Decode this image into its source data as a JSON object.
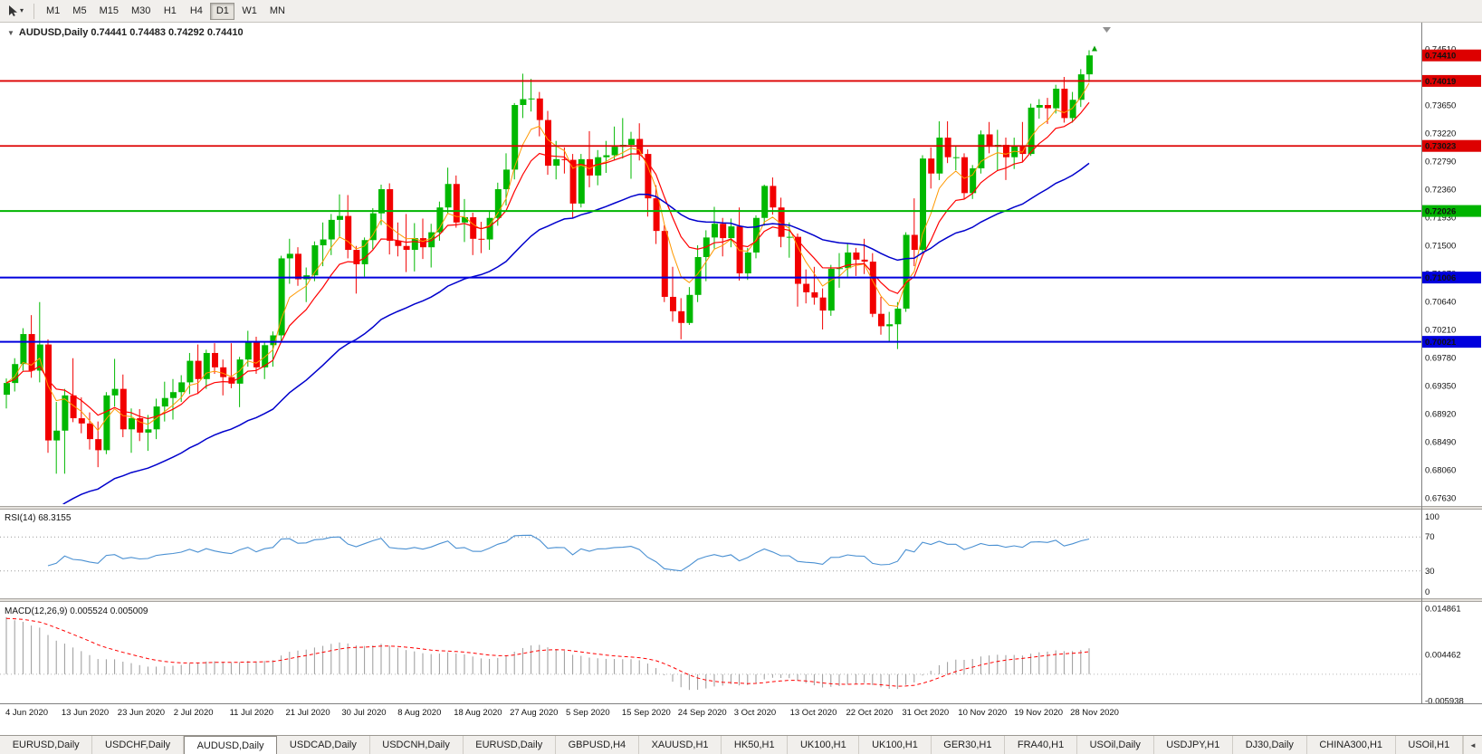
{
  "toolbar": {
    "pointer_tool": {
      "caret": "▾"
    },
    "timeframes": [
      {
        "label": "M1",
        "active": false
      },
      {
        "label": "M5",
        "active": false
      },
      {
        "label": "M15",
        "active": false
      },
      {
        "label": "M30",
        "active": false
      },
      {
        "label": "H1",
        "active": false
      },
      {
        "label": "H4",
        "active": false
      },
      {
        "label": "D1",
        "active": true
      },
      {
        "label": "W1",
        "active": false
      },
      {
        "label": "MN",
        "active": false
      }
    ]
  },
  "chart_data": {
    "type": "candlestick",
    "symbol": "AUDUSD",
    "timeframe": "Daily",
    "readout_line": "AUDUSD,Daily  0.74441 0.74483 0.74292 0.74410",
    "ohlc_readout": {
      "open": "0.74441",
      "high": "0.74483",
      "low": "0.74292",
      "close": "0.74410"
    },
    "up_color": "#00b800",
    "down_color": "#f20000",
    "price_axis": {
      "scale_max": 0.74857,
      "scale_min": 0.67533,
      "labels": [
        "0.74510",
        "0.73650",
        "0.73220",
        "0.72790",
        "0.72360",
        "0.71930",
        "0.71500",
        "0.71070",
        "0.70640",
        "0.70210",
        "0.69780",
        "0.69350",
        "0.68920",
        "0.68490",
        "0.68060",
        "0.67630"
      ]
    },
    "levels": [
      {
        "price": 0.7441,
        "label": "0.74410",
        "color": "#dd0000",
        "line": false,
        "width": 0
      },
      {
        "price": 0.74019,
        "label": "0.74019",
        "color": "#dd0000",
        "line": true,
        "width": 1.8
      },
      {
        "price": 0.73023,
        "label": "0.73023",
        "color": "#dd0000",
        "line": true,
        "width": 1.8
      },
      {
        "price": 0.72026,
        "label": "0.72026",
        "color": "#00b400",
        "line": true,
        "width": 2
      },
      {
        "price": 0.71006,
        "label": "0.71006",
        "color": "#0000dd",
        "line": true,
        "width": 2
      },
      {
        "price": 0.70021,
        "label": "0.70021",
        "color": "#0000dd",
        "line": true,
        "width": 2
      }
    ],
    "moving_averages": [
      {
        "name": "ma-fast-orange",
        "period": 5,
        "color": "#ff9900",
        "width": 1
      },
      {
        "name": "ma-mid-red",
        "period": 10,
        "color": "#ff0000",
        "width": 1.2
      },
      {
        "name": "ma-slow-blue",
        "period": 35,
        "color": "#0000cc",
        "width": 1.5,
        "seed": 0.665
      }
    ],
    "x_labels": [
      "4 Jun 2020",
      "13 Jun 2020",
      "23 Jun 2020",
      "2 Jul 2020",
      "11 Jul 2020",
      "21 Jul 2020",
      "30 Jul 2020",
      "8 Aug 2020",
      "18 Aug 2020",
      "27 Aug 2020",
      "5 Sep 2020",
      "15 Sep 2020",
      "24 Sep 2020",
      "3 Oct 2020",
      "13 Oct 2020",
      "22 Oct 2020",
      "31 Oct 2020",
      "10 Nov 2020",
      "19 Nov 2020",
      "28 Nov 2020"
    ],
    "rsi": {
      "readout": "RSI(14) 68.3155",
      "period": 14,
      "value": "68.3155",
      "color": "#4a90d2",
      "level_lines": [
        70,
        30
      ],
      "axis_labels": [
        "100",
        "70",
        "30",
        "0"
      ]
    },
    "macd": {
      "readout": "MACD(12,26,9) 0.005524 0.005009",
      "fast": 12,
      "slow": 26,
      "signal": 9,
      "macd_value": "0.005524",
      "signal_value": "0.005009",
      "bar_color": "#9a9a9a",
      "signal_color": "#ff0000",
      "scale": {
        "max": 0.014861,
        "min": -0.005938
      },
      "axis_labels": [
        "0.014861",
        "0.004462",
        "-0.005938"
      ],
      "seed_slow": 0.68,
      "seed_signal": 0.0125
    },
    "last_candle_marker": {
      "shape": "arrow-up",
      "color": "#00a000"
    },
    "candles": [
      [
        0.6921,
        0.6946,
        0.69,
        0.6939
      ],
      [
        0.6939,
        0.6977,
        0.6926,
        0.6968
      ],
      [
        0.6968,
        0.7023,
        0.6958,
        0.7014
      ],
      [
        0.7014,
        0.7043,
        0.6947,
        0.6958
      ],
      [
        0.6958,
        0.7063,
        0.694,
        0.6998
      ],
      [
        0.6998,
        0.7006,
        0.6832,
        0.6851
      ],
      [
        0.6851,
        0.691,
        0.68,
        0.6866
      ],
      [
        0.6866,
        0.693,
        0.68,
        0.692
      ],
      [
        0.692,
        0.6977,
        0.6879,
        0.6885
      ],
      [
        0.6885,
        0.6917,
        0.6862,
        0.6877
      ],
      [
        0.6877,
        0.6894,
        0.6837,
        0.6853
      ],
      [
        0.6853,
        0.688,
        0.681,
        0.6836
      ],
      [
        0.6836,
        0.6925,
        0.683,
        0.692
      ],
      [
        0.692,
        0.6976,
        0.6903,
        0.693
      ],
      [
        0.693,
        0.6952,
        0.6856,
        0.6868
      ],
      [
        0.6868,
        0.69,
        0.6832,
        0.6885
      ],
      [
        0.6885,
        0.6899,
        0.685,
        0.6863
      ],
      [
        0.6863,
        0.689,
        0.6835,
        0.6868
      ],
      [
        0.6868,
        0.6915,
        0.6853,
        0.6903
      ],
      [
        0.6903,
        0.6941,
        0.688,
        0.6916
      ],
      [
        0.6916,
        0.6945,
        0.6883,
        0.6925
      ],
      [
        0.6925,
        0.6951,
        0.691,
        0.694
      ],
      [
        0.694,
        0.6985,
        0.6922,
        0.6973
      ],
      [
        0.6973,
        0.6998,
        0.6922,
        0.6945
      ],
      [
        0.6945,
        0.699,
        0.693,
        0.6985
      ],
      [
        0.6985,
        0.7,
        0.6953,
        0.6963
      ],
      [
        0.6963,
        0.6975,
        0.692,
        0.6948
      ],
      [
        0.6948,
        0.7,
        0.6931,
        0.6938
      ],
      [
        0.6938,
        0.6979,
        0.6902,
        0.6975
      ],
      [
        0.6975,
        0.7019,
        0.6964,
        0.7003
      ],
      [
        0.7003,
        0.701,
        0.6953,
        0.6963
      ],
      [
        0.6963,
        0.7003,
        0.6945,
        0.6997
      ],
      [
        0.6997,
        0.7018,
        0.6964,
        0.7012
      ],
      [
        0.7012,
        0.7134,
        0.7001,
        0.713
      ],
      [
        0.713,
        0.716,
        0.7091,
        0.7137
      ],
      [
        0.7137,
        0.7147,
        0.7088,
        0.7098
      ],
      [
        0.7098,
        0.7116,
        0.7063,
        0.7104
      ],
      [
        0.7104,
        0.7156,
        0.7095,
        0.715
      ],
      [
        0.715,
        0.7185,
        0.7118,
        0.7159
      ],
      [
        0.7159,
        0.7198,
        0.7135,
        0.7189
      ],
      [
        0.7189,
        0.7228,
        0.7162,
        0.7195
      ],
      [
        0.7195,
        0.7227,
        0.713,
        0.7143
      ],
      [
        0.7143,
        0.7149,
        0.7076,
        0.7121
      ],
      [
        0.7121,
        0.7162,
        0.7102,
        0.7158
      ],
      [
        0.7158,
        0.7207,
        0.7144,
        0.7199
      ],
      [
        0.7199,
        0.7243,
        0.7181,
        0.7236
      ],
      [
        0.7236,
        0.7245,
        0.7136,
        0.7157
      ],
      [
        0.7157,
        0.7185,
        0.7133,
        0.7149
      ],
      [
        0.7149,
        0.7198,
        0.7109,
        0.7143
      ],
      [
        0.7143,
        0.7184,
        0.711,
        0.7161
      ],
      [
        0.7161,
        0.7191,
        0.7129,
        0.7147
      ],
      [
        0.7147,
        0.7183,
        0.7116,
        0.717
      ],
      [
        0.717,
        0.7217,
        0.7157,
        0.7208
      ],
      [
        0.7208,
        0.7269,
        0.7199,
        0.7244
      ],
      [
        0.7244,
        0.7257,
        0.7177,
        0.7185
      ],
      [
        0.7185,
        0.7221,
        0.7155,
        0.7193
      ],
      [
        0.7193,
        0.72,
        0.7135,
        0.716
      ],
      [
        0.716,
        0.7186,
        0.7138,
        0.7159
      ],
      [
        0.7159,
        0.7203,
        0.7143,
        0.7192
      ],
      [
        0.7192,
        0.7246,
        0.718,
        0.7236
      ],
      [
        0.7236,
        0.7291,
        0.7211,
        0.7266
      ],
      [
        0.7266,
        0.7368,
        0.7251,
        0.7365
      ],
      [
        0.7365,
        0.7413,
        0.7345,
        0.7374
      ],
      [
        0.7374,
        0.7405,
        0.7355,
        0.7375
      ],
      [
        0.7375,
        0.7385,
        0.7317,
        0.7342
      ],
      [
        0.7342,
        0.7356,
        0.7258,
        0.7272
      ],
      [
        0.7272,
        0.731,
        0.7251,
        0.7282
      ],
      [
        0.7282,
        0.73,
        0.726,
        0.7281
      ],
      [
        0.7281,
        0.729,
        0.7192,
        0.7214
      ],
      [
        0.7214,
        0.729,
        0.7208,
        0.7282
      ],
      [
        0.7282,
        0.7325,
        0.7239,
        0.7257
      ],
      [
        0.7257,
        0.7296,
        0.7242,
        0.7285
      ],
      [
        0.7285,
        0.731,
        0.7261,
        0.7288
      ],
      [
        0.7288,
        0.7332,
        0.728,
        0.7301
      ],
      [
        0.7301,
        0.7345,
        0.7283,
        0.7304
      ],
      [
        0.7304,
        0.7324,
        0.7252,
        0.7313
      ],
      [
        0.7313,
        0.7337,
        0.728,
        0.729
      ],
      [
        0.729,
        0.7297,
        0.7194,
        0.7222
      ],
      [
        0.7222,
        0.7242,
        0.7152,
        0.7172
      ],
      [
        0.7172,
        0.7181,
        0.7063,
        0.7071
      ],
      [
        0.7071,
        0.7117,
        0.7033,
        0.7049
      ],
      [
        0.7049,
        0.7069,
        0.7006,
        0.7031
      ],
      [
        0.7031,
        0.7086,
        0.7028,
        0.7074
      ],
      [
        0.7074,
        0.715,
        0.7063,
        0.7132
      ],
      [
        0.7132,
        0.7173,
        0.7095,
        0.7162
      ],
      [
        0.7162,
        0.7209,
        0.7145,
        0.7183
      ],
      [
        0.7183,
        0.7192,
        0.7133,
        0.7161
      ],
      [
        0.7161,
        0.7191,
        0.7147,
        0.7179
      ],
      [
        0.7179,
        0.7208,
        0.7096,
        0.7107
      ],
      [
        0.7107,
        0.7146,
        0.7097,
        0.7139
      ],
      [
        0.7139,
        0.7196,
        0.713,
        0.7192
      ],
      [
        0.7192,
        0.7243,
        0.718,
        0.7241
      ],
      [
        0.7241,
        0.7254,
        0.7197,
        0.7208
      ],
      [
        0.7208,
        0.7223,
        0.7147,
        0.7163
      ],
      [
        0.7163,
        0.7185,
        0.7131,
        0.7163
      ],
      [
        0.7163,
        0.7168,
        0.7056,
        0.7091
      ],
      [
        0.7091,
        0.7113,
        0.7061,
        0.7078
      ],
      [
        0.7078,
        0.7117,
        0.7059,
        0.707
      ],
      [
        0.707,
        0.7084,
        0.7021,
        0.705
      ],
      [
        0.705,
        0.712,
        0.7042,
        0.7114
      ],
      [
        0.7114,
        0.7138,
        0.7085,
        0.7115
      ],
      [
        0.7115,
        0.7152,
        0.7102,
        0.7139
      ],
      [
        0.7139,
        0.7146,
        0.7103,
        0.7128
      ],
      [
        0.7128,
        0.716,
        0.7106,
        0.7125
      ],
      [
        0.7125,
        0.7138,
        0.704,
        0.7045
      ],
      [
        0.7045,
        0.7071,
        0.7013,
        0.7026
      ],
      [
        0.7026,
        0.7048,
        0.7002,
        0.7029
      ],
      [
        0.7029,
        0.7063,
        0.6991,
        0.7053
      ],
      [
        0.7053,
        0.717,
        0.7048,
        0.7166
      ],
      [
        0.7166,
        0.7222,
        0.7118,
        0.7143
      ],
      [
        0.7143,
        0.7288,
        0.7139,
        0.7283
      ],
      [
        0.7283,
        0.73,
        0.7237,
        0.726
      ],
      [
        0.726,
        0.734,
        0.725,
        0.7315
      ],
      [
        0.7315,
        0.734,
        0.7276,
        0.7285
      ],
      [
        0.7285,
        0.7302,
        0.7265,
        0.7285
      ],
      [
        0.7285,
        0.7291,
        0.7221,
        0.723
      ],
      [
        0.723,
        0.7273,
        0.7221,
        0.7268
      ],
      [
        0.7268,
        0.7326,
        0.726,
        0.732
      ],
      [
        0.732,
        0.7339,
        0.7291,
        0.7301
      ],
      [
        0.7301,
        0.7327,
        0.7265,
        0.7304
      ],
      [
        0.7304,
        0.7315,
        0.725,
        0.7285
      ],
      [
        0.7285,
        0.7315,
        0.7267,
        0.7303
      ],
      [
        0.7303,
        0.7339,
        0.7277,
        0.729
      ],
      [
        0.729,
        0.7367,
        0.7287,
        0.7361
      ],
      [
        0.7361,
        0.7374,
        0.7344,
        0.7365
      ],
      [
        0.7365,
        0.7376,
        0.7336,
        0.736
      ],
      [
        0.736,
        0.7396,
        0.7352,
        0.739
      ],
      [
        0.739,
        0.7408,
        0.7338,
        0.7345
      ],
      [
        0.7345,
        0.7385,
        0.7338,
        0.7373
      ],
      [
        0.7373,
        0.742,
        0.7362,
        0.7412
      ],
      [
        0.7412,
        0.7449,
        0.74,
        0.7441
      ]
    ]
  },
  "bottom_tabs": {
    "scroll_left": "◄",
    "tabs": [
      {
        "label": "EURUSD,Daily",
        "active": false
      },
      {
        "label": "USDCHF,Daily",
        "active": false
      },
      {
        "label": "AUDUSD,Daily",
        "active": true
      },
      {
        "label": "USDCAD,Daily",
        "active": false
      },
      {
        "label": "USDCNH,Daily",
        "active": false
      },
      {
        "label": "EURUSD,Daily",
        "active": false
      },
      {
        "label": "GBPUSD,H4",
        "active": false
      },
      {
        "label": "XAUUSD,H1",
        "active": false
      },
      {
        "label": "HK50,H1",
        "active": false
      },
      {
        "label": "UK100,H1",
        "active": false
      },
      {
        "label": "UK100,H1",
        "active": false
      },
      {
        "label": "GER30,H1",
        "active": false
      },
      {
        "label": "FRA40,H1",
        "active": false
      },
      {
        "label": "USOil,Daily",
        "active": false
      },
      {
        "label": "USDJPY,H1",
        "active": false
      },
      {
        "label": "DJ30,Daily",
        "active": false
      },
      {
        "label": "CHINA300,H1",
        "active": false
      },
      {
        "label": "USOil,H1",
        "active": false
      }
    ]
  }
}
